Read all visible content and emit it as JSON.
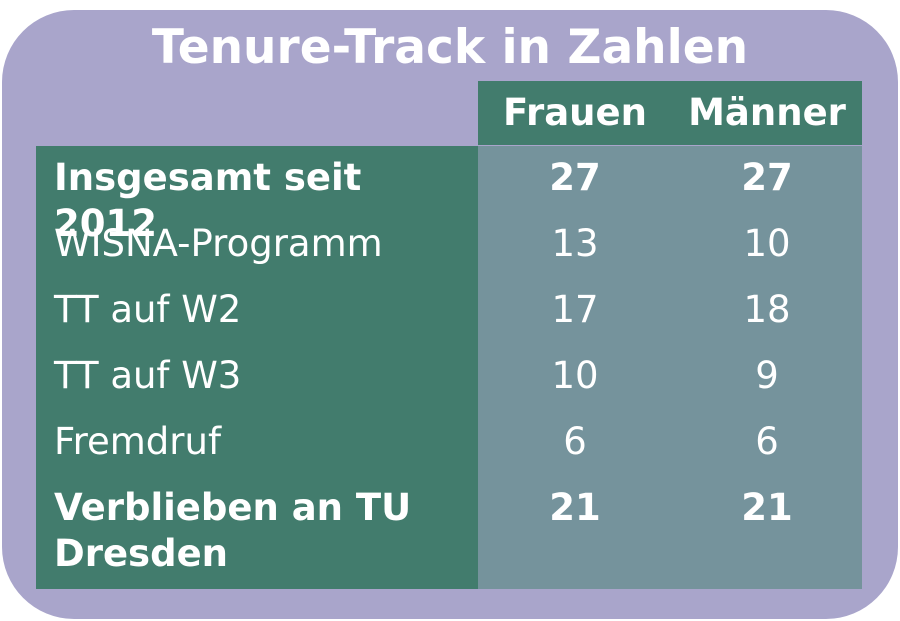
{
  "chart_data": {
    "type": "table",
    "title": "Tenure-Track in Zahlen",
    "columns": [
      "Frauen",
      "Männer"
    ],
    "rows": [
      {
        "label": "Insgesamt seit 2012",
        "values": [
          "27",
          "27"
        ],
        "bold": true
      },
      {
        "label": "WISNA-Programm",
        "values": [
          "13",
          "10"
        ],
        "bold": false
      },
      {
        "label": "TT auf W2",
        "values": [
          "17",
          "18"
        ],
        "bold": false
      },
      {
        "label": "TT auf W3",
        "values": [
          "10",
          "9"
        ],
        "bold": false
      },
      {
        "label": "Fremdruf",
        "values": [
          "6",
          "6"
        ],
        "bold": false
      },
      {
        "label": "Verblieben an TU Dresden",
        "values": [
          "21",
          "21"
        ],
        "bold": true
      }
    ]
  },
  "colors": {
    "background": "#a9a5cb",
    "dark_green": "#427c6d",
    "blue_gray": "#75939c",
    "text": "#ffffff"
  }
}
